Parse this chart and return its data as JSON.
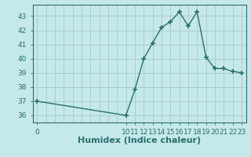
{
  "x": [
    0,
    1,
    2,
    3,
    4,
    5,
    6,
    7,
    8,
    9,
    10,
    11,
    12,
    13,
    14,
    15,
    16,
    17,
    18,
    19,
    20,
    21,
    22,
    23
  ],
  "y": [
    37.0,
    36.9,
    36.8,
    36.7,
    36.6,
    36.5,
    36.4,
    36.3,
    36.2,
    36.1,
    36.0,
    37.8,
    40.0,
    41.1,
    42.2,
    42.6,
    43.3,
    42.3,
    43.3,
    40.1,
    39.3,
    39.3,
    39.1,
    39.0
  ],
  "line_color": "#2a7070",
  "bg_color": "#c5e8e8",
  "grid_color": "#aacaca",
  "xlabel": "Humidex (Indice chaleur)",
  "xlabel_fontsize": 8,
  "yticks": [
    36,
    37,
    38,
    39,
    40,
    41,
    42,
    43
  ],
  "xticks": [
    0,
    10,
    11,
    12,
    13,
    14,
    15,
    16,
    17,
    18,
    19,
    20,
    21,
    22,
    23
  ],
  "xlim": [
    -0.5,
    23.5
  ],
  "ylim": [
    35.5,
    43.8
  ],
  "marker": "+",
  "markersize": 5,
  "tick_label_fontsize": 6.5,
  "linewidth": 1.0,
  "marker_hours": [
    10,
    11,
    12,
    13,
    14,
    15,
    16,
    17,
    18,
    19,
    20,
    21,
    22,
    23
  ],
  "marker_at_0": true
}
